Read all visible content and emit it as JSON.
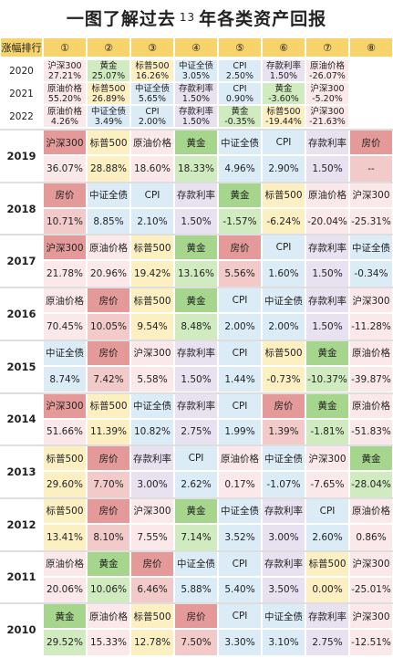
{
  "title": {
    "prefix": "一图了解过去",
    "num": "13",
    "suffix": "年各类资产回报"
  },
  "colors": {
    "沪深300": "#fbe8ea",
    "标普500": "#fcefc2",
    "原油价格": "#fbe8ea",
    "黄金": "#d1ebc0",
    "中证全债": "#dcecf7",
    "CPI": "#dcecf7",
    "存款利率": "#e8e1f0",
    "房价": "#f2caca"
  },
  "strong_colors": {
    "黄金": "#a6d68d",
    "房价": "#e59a9a",
    "沪深300": "#e59a9a",
    "原油价格": "#f2caca"
  },
  "chart_data": {
    "type": "table",
    "header_label": "涨幅排行",
    "ranks": [
      "①",
      "②",
      "③",
      "④",
      "⑤",
      "⑥",
      "⑦",
      "⑧"
    ],
    "summary_rows": [
      {
        "year": "2020",
        "cells": [
          [
            "沪深300",
            "27.21%"
          ],
          [
            "黄金",
            "25.07%"
          ],
          [
            "标普500",
            "16.26%"
          ],
          [
            "中证全债",
            "3.05%"
          ],
          [
            "CPI",
            "2.50%"
          ],
          [
            "存款利率",
            "1.50%"
          ],
          [
            "原油价格",
            "-26.07%"
          ],
          [
            "",
            ""
          ]
        ]
      },
      {
        "year": "2021",
        "cells": [
          [
            "原油价格",
            "55.20%"
          ],
          [
            "标普500",
            "26.89%"
          ],
          [
            "中证全债",
            "5.65%"
          ],
          [
            "存款利率",
            "1.50%"
          ],
          [
            "CPI",
            "0.90%"
          ],
          [
            "黄金",
            "-3.60%"
          ],
          [
            "沪深300",
            "-5.20%"
          ],
          [
            "",
            ""
          ]
        ]
      },
      {
        "year": "2022",
        "cells": [
          [
            "原油价格",
            "4.26%"
          ],
          [
            "中证全债",
            "3.49%"
          ],
          [
            "CPI",
            "2.00%"
          ],
          [
            "存款利率",
            "1.50%"
          ],
          [
            "黄金",
            "-0.35%"
          ],
          [
            "标普500",
            "-19.44%"
          ],
          [
            "沪深300",
            "-21.63%"
          ],
          [
            "",
            ""
          ]
        ]
      }
    ],
    "year_rows": [
      {
        "year": "2019",
        "cells": [
          [
            "沪深300",
            "36.07%"
          ],
          [
            "标普500",
            "28.88%"
          ],
          [
            "原油价格",
            "18.60%"
          ],
          [
            "黄金",
            "18.33%"
          ],
          [
            "中证全债",
            "4.96%"
          ],
          [
            "CPI",
            "2.90%"
          ],
          [
            "存款利率",
            "1.50%"
          ],
          [
            "房价",
            "--"
          ]
        ]
      },
      {
        "year": "2018",
        "cells": [
          [
            "房价",
            "10.71%"
          ],
          [
            "中证全债",
            "8.85%"
          ],
          [
            "CPI",
            "2.10%"
          ],
          [
            "存款利率",
            "1.50%"
          ],
          [
            "黄金",
            "-1.57%"
          ],
          [
            "标普500",
            "-6.24%"
          ],
          [
            "原油价格",
            "-20.04%"
          ],
          [
            "沪深300",
            "-25.31%"
          ]
        ]
      },
      {
        "year": "2017",
        "cells": [
          [
            "沪深300",
            "21.78%"
          ],
          [
            "原油价格",
            "20.96%"
          ],
          [
            "标普500",
            "19.42%"
          ],
          [
            "黄金",
            "13.16%"
          ],
          [
            "房价",
            "5.56%"
          ],
          [
            "CPI",
            "1.60%"
          ],
          [
            "存款利率",
            "1.50%"
          ],
          [
            "中证全债",
            "-0.34%"
          ]
        ]
      },
      {
        "year": "2016",
        "cells": [
          [
            "原油价格",
            "70.45%"
          ],
          [
            "房价",
            "10.05%"
          ],
          [
            "标普500",
            "9.54%"
          ],
          [
            "黄金",
            "8.48%"
          ],
          [
            "CPI",
            "2.00%"
          ],
          [
            "中证全债",
            "2.00%"
          ],
          [
            "存款利率",
            "1.50%"
          ],
          [
            "沪深300",
            "-11.28%"
          ]
        ]
      },
      {
        "year": "2015",
        "cells": [
          [
            "中证全债",
            "8.74%"
          ],
          [
            "房价",
            "7.42%"
          ],
          [
            "沪深300",
            "5.58%"
          ],
          [
            "存款利率",
            "1.50%"
          ],
          [
            "CPI",
            "1.44%"
          ],
          [
            "标普500",
            "-0.73%"
          ],
          [
            "黄金",
            "-10.37%"
          ],
          [
            "原油价格",
            "-39.87%"
          ]
        ]
      },
      {
        "year": "2014",
        "cells": [
          [
            "沪深300",
            "51.66%"
          ],
          [
            "标普500",
            "11.39%"
          ],
          [
            "中证全债",
            "10.82%"
          ],
          [
            "存款利率",
            "2.75%"
          ],
          [
            "CPI",
            "1.99%"
          ],
          [
            "房价",
            "1.39%"
          ],
          [
            "黄金",
            "-1.81%"
          ],
          [
            "原油价格",
            "-51.83%"
          ]
        ]
      },
      {
        "year": "2013",
        "cells": [
          [
            "标普500",
            "29.60%"
          ],
          [
            "房价",
            "7.70%"
          ],
          [
            "存款利率",
            "3.00%"
          ],
          [
            "CPI",
            "2.62%"
          ],
          [
            "原油价格",
            "0.17%"
          ],
          [
            "中证全债",
            "-1.07%"
          ],
          [
            "沪深300",
            "-7.65%"
          ],
          [
            "黄金",
            "-28.04%"
          ]
        ]
      },
      {
        "year": "2012",
        "cells": [
          [
            "标普500",
            "13.41%"
          ],
          [
            "房价",
            "8.10%"
          ],
          [
            "沪深300",
            "7.55%"
          ],
          [
            "黄金",
            "7.14%"
          ],
          [
            "中证全债",
            "3.52%"
          ],
          [
            "存款利率",
            "3.00%"
          ],
          [
            "CPI",
            "2.60%"
          ],
          [
            "原油价格",
            "0.86%"
          ]
        ]
      },
      {
        "year": "2011",
        "cells": [
          [
            "原油价格",
            "20.06%"
          ],
          [
            "黄金",
            "10.06%"
          ],
          [
            "房价",
            "6.46%"
          ],
          [
            "中证全债",
            "5.88%"
          ],
          [
            "CPI",
            "5.40%"
          ],
          [
            "存款利率",
            "3.50%"
          ],
          [
            "标普500",
            "0.00%"
          ],
          [
            "沪深300",
            "-25.01%"
          ]
        ]
      },
      {
        "year": "2010",
        "cells": [
          [
            "黄金",
            "29.52%"
          ],
          [
            "原油价格",
            "15.33%"
          ],
          [
            "标普500",
            "12.78%"
          ],
          [
            "房价",
            "7.50%"
          ],
          [
            "CPI",
            "3.30%"
          ],
          [
            "中证全债",
            "3.10%"
          ],
          [
            "存款利率",
            "2.75%"
          ],
          [
            "沪深300",
            "-12.51%"
          ]
        ]
      }
    ]
  }
}
